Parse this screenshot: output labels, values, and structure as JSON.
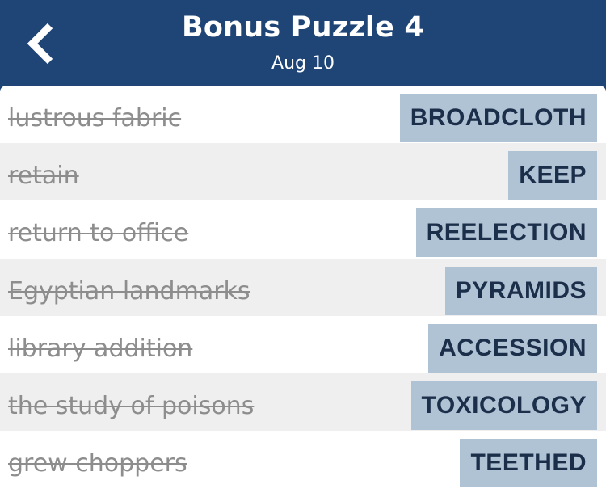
{
  "header": {
    "title": "Bonus Puzzle 4",
    "date": "Aug 10",
    "back_icon": "chevron-left-icon"
  },
  "colors": {
    "header_bg": "#1f4577",
    "answer_bg": "#b0c3d4",
    "answer_text": "#1c2f4a",
    "clue_text": "#8d8d8d"
  },
  "clues": [
    {
      "clue": "lustrous fabric",
      "answer": "BROADCLOTH"
    },
    {
      "clue": "retain",
      "answer": "KEEP"
    },
    {
      "clue": "return to office",
      "answer": "REELECTION"
    },
    {
      "clue": "Egyptian landmarks",
      "answer": "PYRAMIDS"
    },
    {
      "clue": "library addition",
      "answer": "ACCESSION"
    },
    {
      "clue": "the study of poisons",
      "answer": "TOXICOLOGY"
    },
    {
      "clue": "grew choppers",
      "answer": "TEETHED"
    }
  ]
}
